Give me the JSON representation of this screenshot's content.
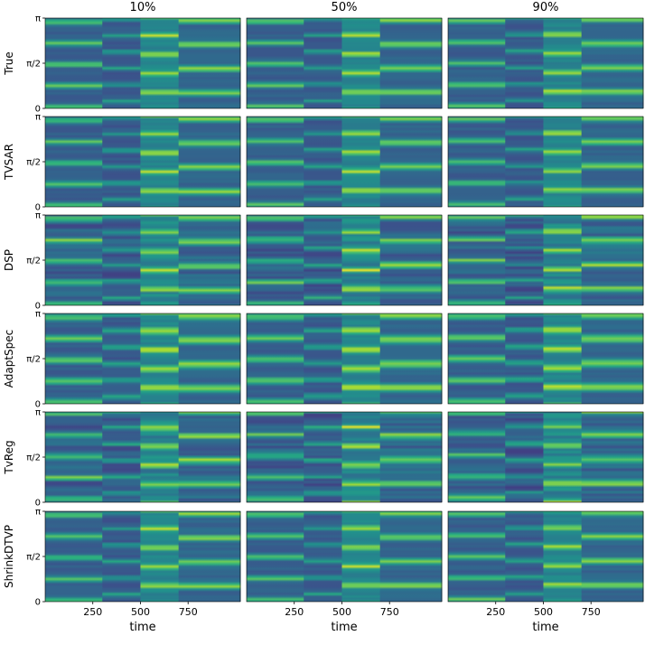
{
  "chart_data": {
    "type": "heatmap",
    "title": "",
    "column_titles": [
      "10%",
      "50%",
      "90%"
    ],
    "row_labels": [
      "True",
      "TVSAR",
      "DSP",
      "AdaptSpec",
      "TvReg",
      "ShrinkDTVP"
    ],
    "xlabel": "time",
    "x_ticks": [
      250,
      500,
      750
    ],
    "xlim": [
      0,
      1024
    ],
    "y_ticks": [
      "0",
      "π/2",
      "π"
    ],
    "ylim": [
      "0",
      "π"
    ],
    "colormap": "viridis",
    "colors": {
      "low": "#440154",
      "mid": "#21918c",
      "high": "#fde725"
    },
    "segment_breakpoints": [
      0,
      300,
      500,
      700,
      1024
    ],
    "panels": [
      {
        "row": "True",
        "column": "10%"
      },
      {
        "row": "True",
        "column": "50%"
      },
      {
        "row": "True",
        "column": "90%"
      },
      {
        "row": "TVSAR",
        "column": "10%"
      },
      {
        "row": "TVSAR",
        "column": "50%"
      },
      {
        "row": "TVSAR",
        "column": "90%"
      },
      {
        "row": "DSP",
        "column": "10%"
      },
      {
        "row": "DSP",
        "column": "50%"
      },
      {
        "row": "DSP",
        "column": "90%"
      },
      {
        "row": "AdaptSpec",
        "column": "10%"
      },
      {
        "row": "AdaptSpec",
        "column": "50%"
      },
      {
        "row": "AdaptSpec",
        "column": "90%"
      },
      {
        "row": "TvReg",
        "column": "10%"
      },
      {
        "row": "TvReg",
        "column": "50%"
      },
      {
        "row": "TvReg",
        "column": "90%"
      },
      {
        "row": "ShrinkDTVP",
        "column": "10%"
      },
      {
        "row": "ShrinkDTVP",
        "column": "50%"
      },
      {
        "row": "ShrinkDTVP",
        "column": "90%"
      }
    ]
  }
}
